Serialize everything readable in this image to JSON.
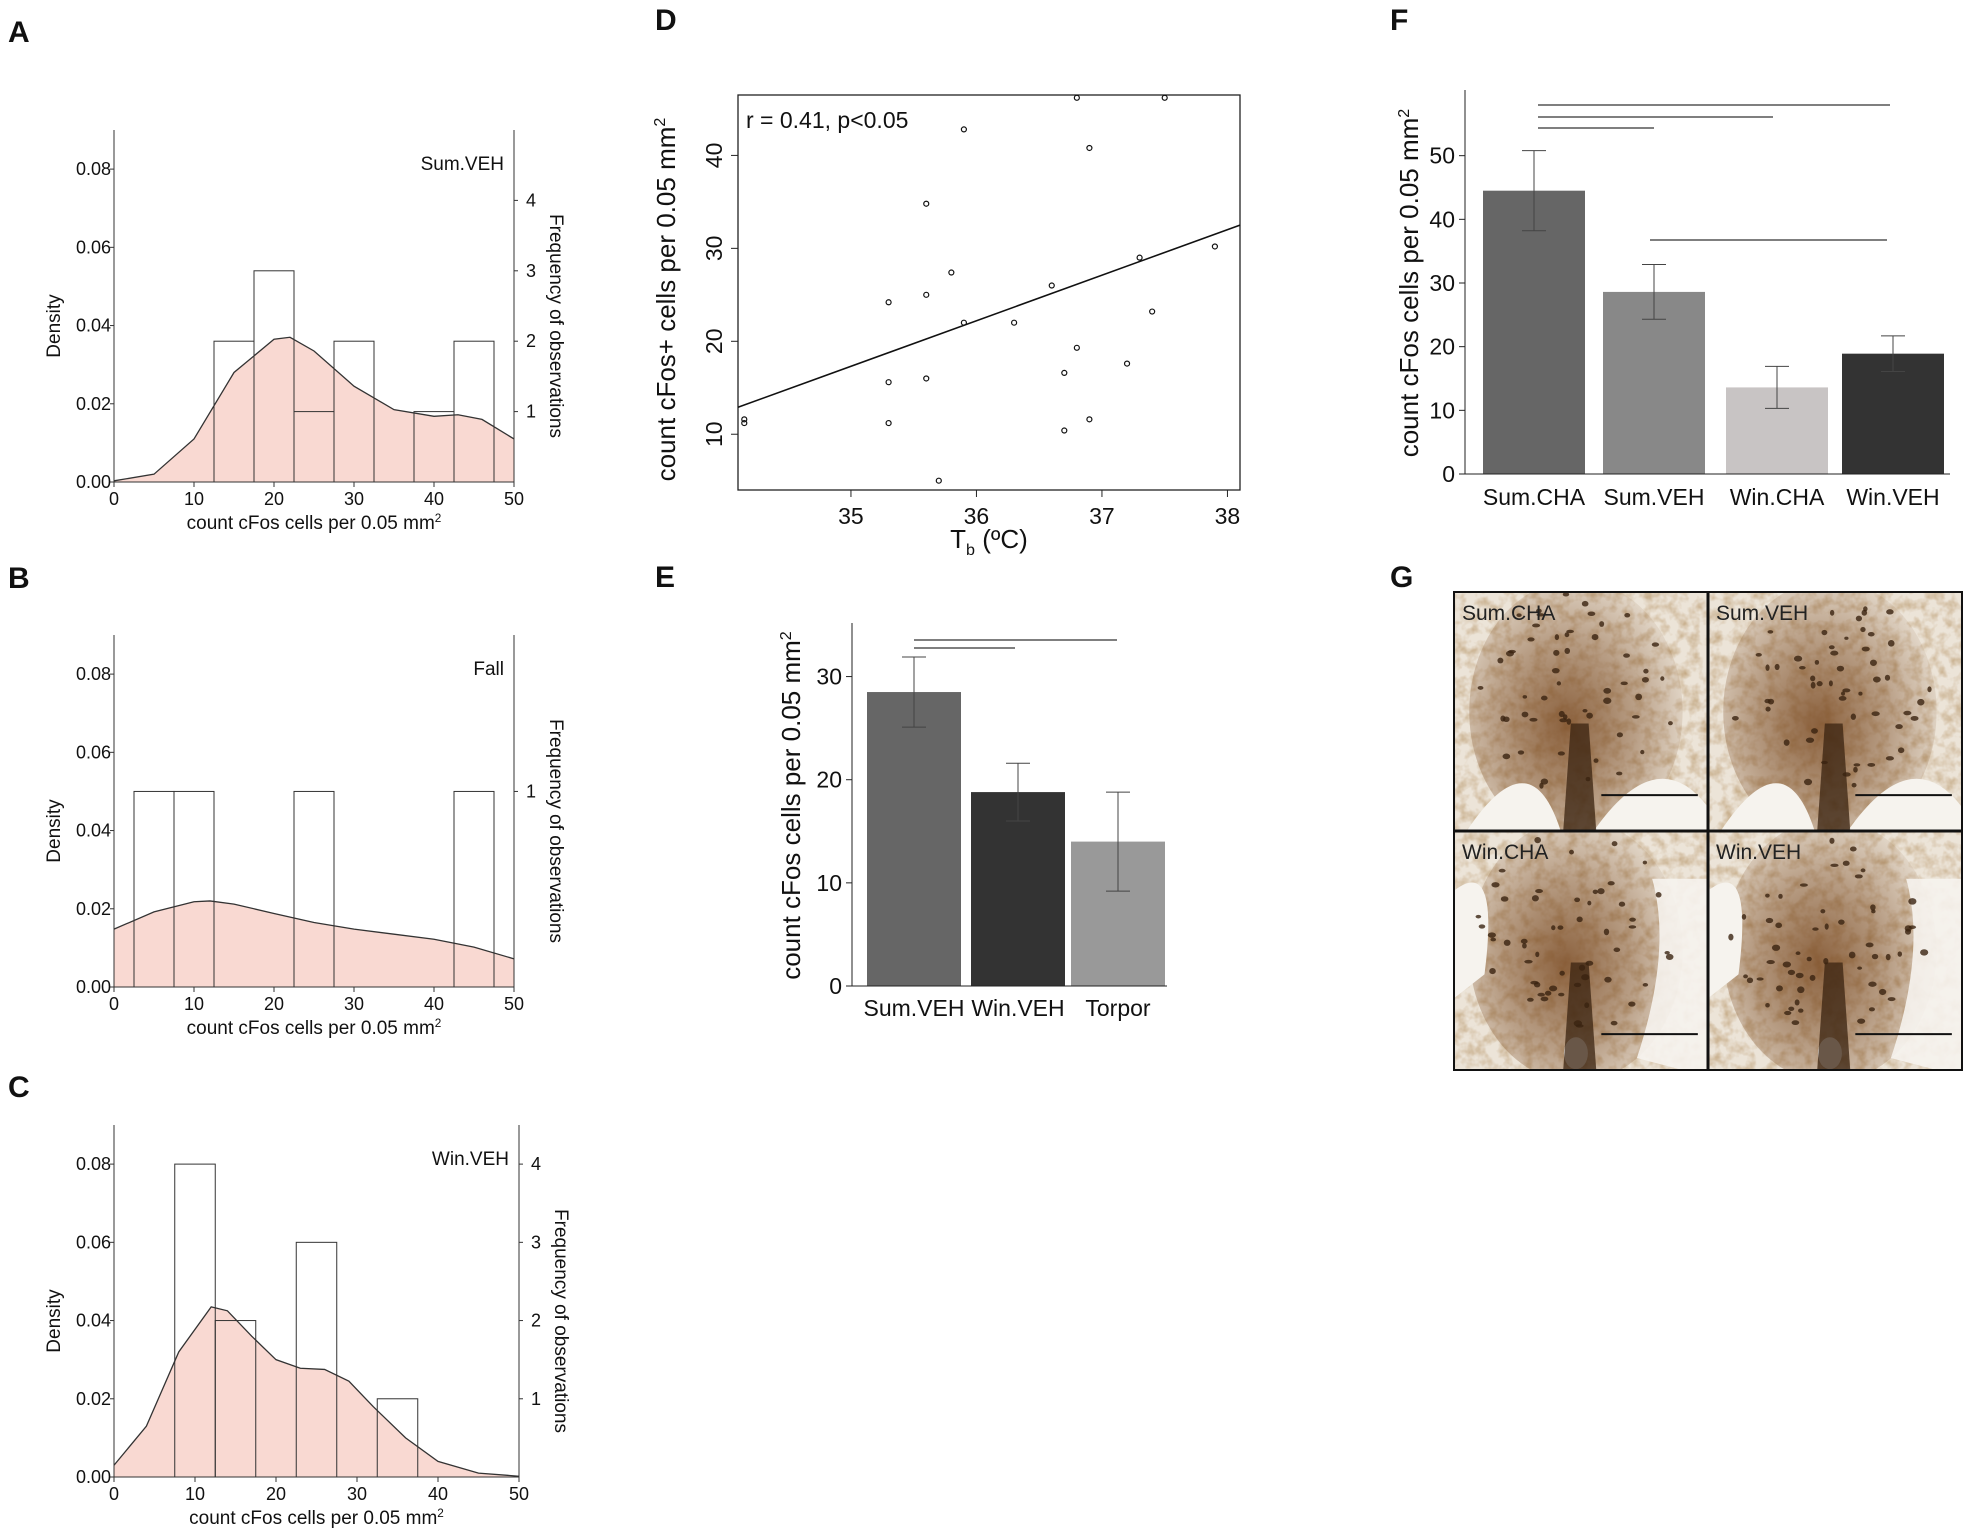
{
  "panels": {
    "A": "A",
    "B": "B",
    "C": "C",
    "D": "D",
    "E": "E",
    "F": "F",
    "G": "G"
  },
  "chart_data": [
    {
      "id": "A",
      "type": "bar",
      "subtype": "histogram-density",
      "title": "Sum.VEH",
      "xlabel": "count cFos cells per 0.05 mm",
      "xlabel_sup": "2",
      "ylabel": "Density",
      "y2label": "Frequency of observations",
      "xlim": [
        0,
        50
      ],
      "ylim": [
        0,
        0.09
      ],
      "xticks": [
        0,
        10,
        20,
        30,
        40,
        50
      ],
      "xtick_labels": [
        "0",
        "10",
        "20",
        "30",
        "40",
        "50"
      ],
      "yticks": [
        0,
        0.02,
        0.04,
        0.06,
        0.08
      ],
      "ytick_labels": [
        "0.00",
        "0.02",
        "0.04",
        "0.06",
        "0.08"
      ],
      "y2ticks": [
        1,
        2,
        3,
        4
      ],
      "y2tick_labels": [
        "1",
        "2",
        "3",
        "4"
      ],
      "y2_per_unit": 0.018,
      "bins": [
        {
          "x0": 12.5,
          "x1": 17.5,
          "count": 2
        },
        {
          "x0": 17.5,
          "x1": 22.5,
          "count": 3
        },
        {
          "x0": 22.5,
          "x1": 27.5,
          "count": 1
        },
        {
          "x0": 27.5,
          "x1": 32.5,
          "count": 2
        },
        {
          "x0": 37.5,
          "x1": 42.5,
          "count": 1
        },
        {
          "x0": 42.5,
          "x1": 47.5,
          "count": 2
        }
      ],
      "density": [
        [
          0,
          0.0003
        ],
        [
          5,
          0.002
        ],
        [
          10,
          0.011
        ],
        [
          15,
          0.028
        ],
        [
          20,
          0.0365
        ],
        [
          22,
          0.037
        ],
        [
          25,
          0.0335
        ],
        [
          30,
          0.0245
        ],
        [
          35,
          0.0185
        ],
        [
          40,
          0.0168
        ],
        [
          43,
          0.0172
        ],
        [
          46,
          0.016
        ],
        [
          50,
          0.011
        ]
      ]
    },
    {
      "id": "B",
      "type": "bar",
      "subtype": "histogram-density",
      "title": "Fall",
      "xlabel": "count cFos cells per 0.05 mm",
      "xlabel_sup": "2",
      "ylabel": "Density",
      "y2label": "Frequency of observations",
      "xlim": [
        0,
        50
      ],
      "ylim": [
        0,
        0.09
      ],
      "xticks": [
        0,
        10,
        20,
        30,
        40,
        50
      ],
      "xtick_labels": [
        "0",
        "10",
        "20",
        "30",
        "40",
        "50"
      ],
      "yticks": [
        0,
        0.02,
        0.04,
        0.06,
        0.08
      ],
      "ytick_labels": [
        "0.00",
        "0.02",
        "0.04",
        "0.06",
        "0.08"
      ],
      "y2ticks": [
        1
      ],
      "y2tick_labels": [
        "1"
      ],
      "y2_per_unit": 0.05,
      "bins": [
        {
          "x0": 2.5,
          "x1": 7.5,
          "count": 1
        },
        {
          "x0": 7.5,
          "x1": 12.5,
          "count": 1
        },
        {
          "x0": 22.5,
          "x1": 27.5,
          "count": 1
        },
        {
          "x0": 42.5,
          "x1": 47.5,
          "count": 1
        }
      ],
      "density": [
        [
          0,
          0.0148
        ],
        [
          5,
          0.0192
        ],
        [
          10,
          0.0218
        ],
        [
          12,
          0.022
        ],
        [
          15,
          0.0212
        ],
        [
          20,
          0.0188
        ],
        [
          25,
          0.0165
        ],
        [
          30,
          0.0148
        ],
        [
          35,
          0.0135
        ],
        [
          40,
          0.0122
        ],
        [
          45,
          0.0102
        ],
        [
          50,
          0.0072
        ]
      ]
    },
    {
      "id": "C",
      "type": "bar",
      "subtype": "histogram-density",
      "title": "Win.VEH",
      "xlabel": "count cFos cells per 0.05 mm",
      "xlabel_sup": "2",
      "ylabel": "Density",
      "y2label": "Frequency of observations",
      "xlim": [
        0,
        50
      ],
      "ylim": [
        0,
        0.09
      ],
      "xticks": [
        0,
        10,
        20,
        30,
        40,
        50
      ],
      "xtick_labels": [
        "0",
        "10",
        "20",
        "30",
        "40",
        "50"
      ],
      "yticks": [
        0,
        0.02,
        0.04,
        0.06,
        0.08
      ],
      "ytick_labels": [
        "0.00",
        "0.02",
        "0.04",
        "0.06",
        "0.08"
      ],
      "y2ticks": [
        1,
        2,
        3,
        4
      ],
      "y2tick_labels": [
        "1",
        "2",
        "3",
        "4"
      ],
      "y2_per_unit": 0.02,
      "bins": [
        {
          "x0": 7.5,
          "x1": 12.5,
          "count": 4
        },
        {
          "x0": 12.5,
          "x1": 17.5,
          "count": 2
        },
        {
          "x0": 22.5,
          "x1": 27.5,
          "count": 3
        },
        {
          "x0": 32.5,
          "x1": 37.5,
          "count": 1
        }
      ],
      "density": [
        [
          0,
          0.003
        ],
        [
          4,
          0.013
        ],
        [
          8,
          0.032
        ],
        [
          12,
          0.0435
        ],
        [
          14,
          0.0425
        ],
        [
          17,
          0.036
        ],
        [
          20,
          0.03
        ],
        [
          23,
          0.0278
        ],
        [
          26,
          0.0275
        ],
        [
          29,
          0.0245
        ],
        [
          32,
          0.018
        ],
        [
          36,
          0.01
        ],
        [
          40,
          0.004
        ],
        [
          45,
          0.001
        ],
        [
          50,
          0.0002
        ]
      ]
    },
    {
      "id": "D",
      "type": "scatter",
      "annotation": "r = 0.41, p<0.05",
      "xlabel": "T",
      "xlabel_sub": "b",
      "xlabel_unit": "(ºC)",
      "ylabel": "count cFos+ cells per 0.05 mm",
      "ylabel_sup": "2",
      "xlim": [
        34.1,
        38.1
      ],
      "ylim": [
        4,
        46.5
      ],
      "xticks": [
        35,
        36,
        37,
        38
      ],
      "xtick_labels": [
        "35",
        "36",
        "37",
        "38"
      ],
      "yticks": [
        10,
        20,
        30,
        40
      ],
      "ytick_labels": [
        "10",
        "20",
        "30",
        "40"
      ],
      "points": [
        [
          34.15,
          11.2
        ],
        [
          34.15,
          11.6
        ],
        [
          35.3,
          24.2
        ],
        [
          35.3,
          15.6
        ],
        [
          35.3,
          11.2
        ],
        [
          35.6,
          34.8
        ],
        [
          35.6,
          25
        ],
        [
          35.6,
          16
        ],
        [
          35.7,
          5
        ],
        [
          35.8,
          27.4
        ],
        [
          35.9,
          42.8
        ],
        [
          35.9,
          22
        ],
        [
          36.3,
          22
        ],
        [
          36.6,
          26
        ],
        [
          36.7,
          16.6
        ],
        [
          36.7,
          10.4
        ],
        [
          36.8,
          46.2
        ],
        [
          36.8,
          19.3
        ],
        [
          36.9,
          40.8
        ],
        [
          36.9,
          11.6
        ],
        [
          37.2,
          17.6
        ],
        [
          37.3,
          29
        ],
        [
          37.4,
          23.2
        ],
        [
          37.5,
          46.2
        ],
        [
          37.9,
          30.2
        ]
      ],
      "fit": [
        [
          34.1,
          12.9
        ],
        [
          38.1,
          32.5
        ]
      ]
    },
    {
      "id": "E",
      "type": "bar",
      "ylabel": "count cFos cells per 0.05 mm",
      "ylabel_sup": "2",
      "categories": [
        "Sum.VEH",
        "Win.VEH",
        "Torpor"
      ],
      "values": [
        28.5,
        18.8,
        14
      ],
      "errors": [
        3.4,
        2.8,
        4.8
      ],
      "colors": [
        "#666666",
        "#333333",
        "#999999"
      ],
      "ylim": [
        0,
        35
      ],
      "yticks": [
        0,
        10,
        20,
        30
      ],
      "ytick_labels": [
        "0",
        "10",
        "20",
        "30"
      ],
      "significance": [
        [
          0,
          1
        ],
        [
          0,
          2
        ]
      ]
    },
    {
      "id": "F",
      "type": "bar",
      "ylabel": "count cFos cells per 0.05 mm",
      "ylabel_sup": "2",
      "categories": [
        "Sum.CHA",
        "Sum.VEH",
        "Win.CHA",
        "Win.VEH"
      ],
      "values": [
        44.5,
        28.6,
        13.6,
        18.9
      ],
      "errors": [
        6.3,
        4.3,
        3.3,
        2.8
      ],
      "colors": [
        "#666666",
        "#888888",
        "#c8c4c4",
        "#333333"
      ],
      "ylim": [
        0,
        60
      ],
      "yticks": [
        0,
        10,
        20,
        30,
        40,
        50
      ],
      "ytick_labels": [
        "0",
        "10",
        "20",
        "30",
        "40",
        "50"
      ],
      "significance": [
        [
          0,
          1
        ],
        [
          0,
          2
        ],
        [
          0,
          3
        ],
        [
          1,
          3
        ]
      ]
    }
  ],
  "micrographs": {
    "tiles": [
      {
        "label": "Sum.CHA"
      },
      {
        "label": "Sum.VEH"
      },
      {
        "label": "Win.CHA"
      },
      {
        "label": "Win.VEH"
      }
    ],
    "colors": {
      "background": "#ece4d8",
      "stain": "#7a4a22",
      "dark": "#3a2310",
      "light": "#f6f3ee"
    }
  }
}
